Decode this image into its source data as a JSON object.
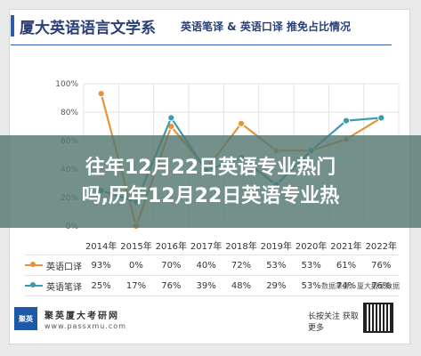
{
  "header": {
    "university": "厦大英语语言文学系",
    "subtitle": "英语笔译 & 英语口译 推免占比情况"
  },
  "overlay": {
    "line1": "往年12月22日英语专业热门",
    "line2": "吗,历年12月22日英语专业热"
  },
  "chart_data": {
    "type": "line",
    "x": [
      "2014年",
      "2015年",
      "2016年",
      "2017年",
      "2018年",
      "2019年",
      "2020年",
      "2021年",
      "2022年"
    ],
    "y_ticks": [
      "0%",
      "20%",
      "40%",
      "60%",
      "80%",
      "100%"
    ],
    "ylim": [
      0,
      100
    ],
    "grid": true,
    "series": [
      {
        "name": "英语口译",
        "color": "#e8923a",
        "values": [
          93,
          0,
          70,
          40,
          72,
          53,
          53,
          61,
          76
        ],
        "labels": [
          "93%",
          "0%",
          "70%",
          "40%",
          "72%",
          "53%",
          "53%",
          "61%",
          "76%"
        ]
      },
      {
        "name": "英语笔译",
        "color": "#3b9bb0",
        "values": [
          25,
          17,
          76,
          39,
          48,
          29,
          53,
          74,
          76
        ],
        "labels": [
          "25%",
          "17%",
          "76%",
          "39%",
          "48%",
          "29%",
          "53%",
          "74%",
          "76%"
        ]
      }
    ]
  },
  "source": "数据来源：厦大报录数据",
  "footer": {
    "logo_text": "聚英",
    "name": "聚英厦大考研网",
    "site": "www.passxmu.com",
    "qr_text": "长按关注 获取更多"
  }
}
